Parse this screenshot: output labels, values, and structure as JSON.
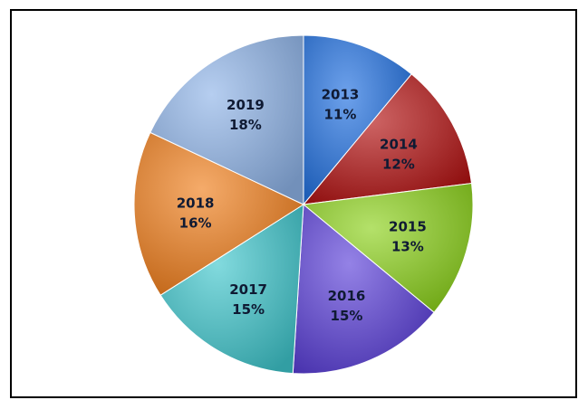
{
  "chart_data": {
    "type": "pie",
    "slices": [
      {
        "label": "2013",
        "pct_label": "11%",
        "value": 11,
        "color": "#1f6fe0"
      },
      {
        "label": "2014",
        "pct_label": "12%",
        "value": 12,
        "color": "#b31212"
      },
      {
        "label": "2015",
        "pct_label": "13%",
        "value": 13,
        "color": "#8bd11a"
      },
      {
        "label": "2016",
        "pct_label": "15%",
        "value": 15,
        "color": "#5a3fd8"
      },
      {
        "label": "2017",
        "pct_label": "15%",
        "value": 15,
        "color": "#3fc6cc"
      },
      {
        "label": "2018",
        "pct_label": "16%",
        "value": 16,
        "color": "#f07d1a"
      },
      {
        "label": "2019",
        "pct_label": "18%",
        "value": 18,
        "color": "#8fb4e8"
      }
    ],
    "start": "12 o'clock",
    "direction": "clockwise",
    "legend": "none",
    "title": ""
  }
}
